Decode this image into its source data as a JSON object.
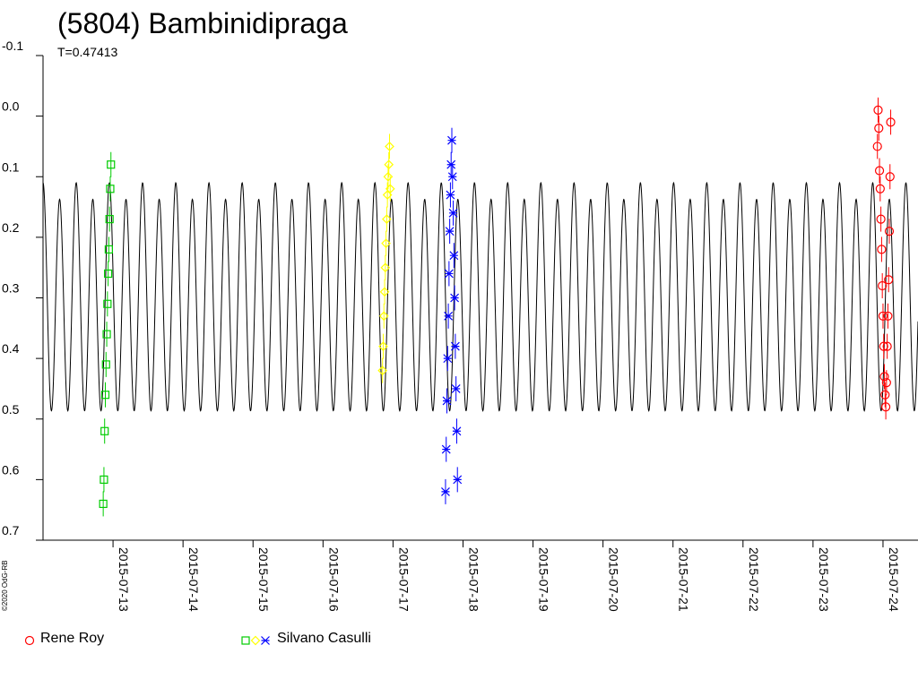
{
  "title": "(5804) Bambinidipraga",
  "period_label": "T=0.47413",
  "credit": "©2020 OdG-RB",
  "chart_data": {
    "type": "scatter",
    "title": "(5804) Bambinidipraga",
    "subtitle": "T=0.47413",
    "y_inverted": true,
    "ylim": [
      -0.1,
      0.7
    ],
    "yticks": [
      -0.1,
      0.0,
      0.1,
      0.2,
      0.3,
      0.4,
      0.5,
      0.6,
      0.7
    ],
    "ytick_labels": [
      "-0.1",
      "0.0",
      "0.1",
      "0.2",
      "0.3",
      "0.4",
      "0.5",
      "0.6",
      "0.7"
    ],
    "xlim": [
      "2015-07-12",
      "2015-07-24.5"
    ],
    "xtick_labels": [
      "2015-07-13",
      "2015-07-14",
      "2015-07-15",
      "2015-07-16",
      "2015-07-17",
      "2015-07-18",
      "2015-07-19",
      "2015-07-20",
      "2015-07-21",
      "2015-07-22",
      "2015-07-23",
      "2015-07-24"
    ],
    "model_curve": {
      "period_days": 0.47413,
      "min_mag": 0.11,
      "max_mag": 0.5
    },
    "series": [
      {
        "name": "Rene Roy",
        "color": "#ff0000",
        "marker": "circle",
        "x": [
          "2015-07-23.92",
          "2015-07-23.93",
          "2015-07-23.94",
          "2015-07-23.95",
          "2015-07-23.96",
          "2015-07-23.97",
          "2015-07-23.98",
          "2015-07-23.99",
          "2015-07-24.00",
          "2015-07-24.01",
          "2015-07-24.02",
          "2015-07-24.03",
          "2015-07-24.04",
          "2015-07-24.05",
          "2015-07-24.06",
          "2015-07-24.07",
          "2015-07-24.08",
          "2015-07-24.09",
          "2015-07-24.10",
          "2015-07-24.11"
        ],
        "y": [
          0.05,
          -0.01,
          0.02,
          0.09,
          0.12,
          0.17,
          0.22,
          0.28,
          0.33,
          0.38,
          0.43,
          0.46,
          0.48,
          0.44,
          0.38,
          0.33,
          0.27,
          0.19,
          0.1,
          0.01
        ]
      },
      {
        "name": "Silvano Casulli",
        "color": "#00cc00",
        "marker": "square",
        "x": [
          "2015-07-12.86",
          "2015-07-12.87",
          "2015-07-12.88",
          "2015-07-12.89",
          "2015-07-12.90",
          "2015-07-12.91",
          "2015-07-12.92",
          "2015-07-12.93",
          "2015-07-12.94",
          "2015-07-12.95",
          "2015-07-12.96",
          "2015-07-12.97"
        ],
        "y": [
          0.64,
          0.6,
          0.52,
          0.46,
          0.41,
          0.36,
          0.31,
          0.26,
          0.22,
          0.17,
          0.12,
          0.08
        ]
      },
      {
        "name": "Silvano Casulli",
        "color": "#ffff00",
        "marker": "diamond",
        "x": [
          "2015-07-16.85",
          "2015-07-16.86",
          "2015-07-16.87",
          "2015-07-16.88",
          "2015-07-16.89",
          "2015-07-16.90",
          "2015-07-16.91",
          "2015-07-16.92",
          "2015-07-16.93",
          "2015-07-16.94",
          "2015-07-16.95",
          "2015-07-16.96"
        ],
        "y": [
          0.42,
          0.38,
          0.33,
          0.29,
          0.25,
          0.21,
          0.17,
          0.13,
          0.1,
          0.08,
          0.05,
          0.12
        ]
      },
      {
        "name": "Silvano Casulli",
        "color": "#0000ff",
        "marker": "star",
        "x": [
          "2015-07-17.75",
          "2015-07-17.76",
          "2015-07-17.77",
          "2015-07-17.78",
          "2015-07-17.79",
          "2015-07-17.80",
          "2015-07-17.81",
          "2015-07-17.82",
          "2015-07-17.83",
          "2015-07-17.84",
          "2015-07-17.85",
          "2015-07-17.86",
          "2015-07-17.87",
          "2015-07-17.88",
          "2015-07-17.89",
          "2015-07-17.90",
          "2015-07-17.91",
          "2015-07-17.92"
        ],
        "y": [
          0.62,
          0.55,
          0.47,
          0.4,
          0.33,
          0.26,
          0.19,
          0.13,
          0.08,
          0.04,
          0.1,
          0.16,
          0.23,
          0.3,
          0.38,
          0.45,
          0.52,
          0.6
        ]
      }
    ],
    "legend": [
      {
        "label": "Rene Roy",
        "markers": [
          "circle"
        ],
        "colors": [
          "#ff0000"
        ]
      },
      {
        "label": "Silvano Casulli",
        "markers": [
          "square",
          "diamond",
          "star"
        ],
        "colors": [
          "#00cc00",
          "#ffff00",
          "#0000ff"
        ]
      }
    ],
    "legend_position": "bottom",
    "grid": false
  }
}
